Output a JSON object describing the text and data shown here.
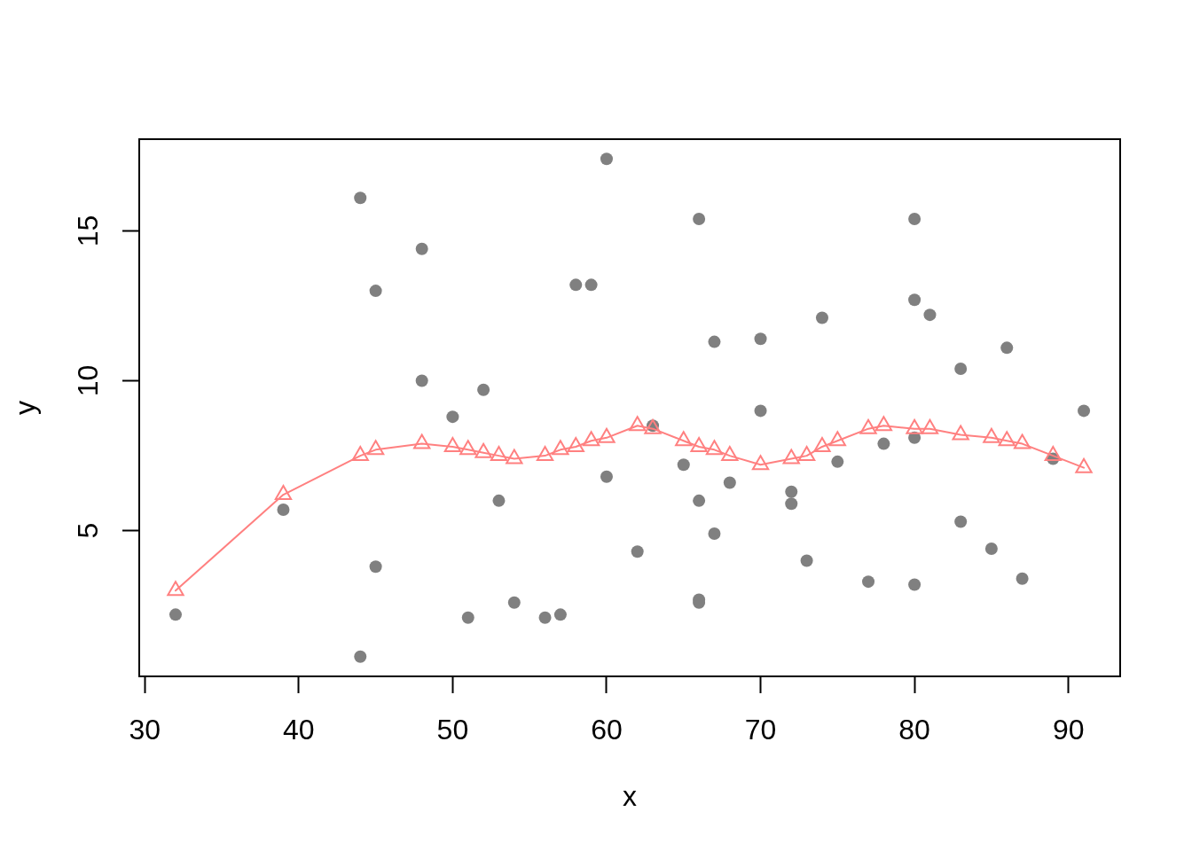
{
  "chart_data": {
    "type": "scatter",
    "xlabel": "x",
    "ylabel": "y",
    "xlim": [
      29.64,
      93.36
    ],
    "ylim": [
      0.14,
      18.06
    ],
    "xticks": [
      30,
      40,
      50,
      60,
      70,
      80,
      90
    ],
    "yticks": [
      5,
      10,
      15
    ],
    "series": [
      {
        "type": "scatter",
        "color": "#808080",
        "marker": "circle",
        "x": [
          32,
          39,
          44,
          44,
          45,
          45,
          48,
          48,
          50,
          51,
          52,
          53,
          54,
          56,
          57,
          58,
          59,
          60,
          60,
          62,
          63,
          65,
          66,
          66,
          66,
          66,
          67,
          67,
          68,
          70,
          70,
          72,
          72,
          73,
          74,
          75,
          77,
          78,
          80,
          80,
          80,
          80,
          81,
          83,
          83,
          85,
          86,
          87,
          89,
          91
        ],
        "values": [
          2.2,
          5.7,
          16.1,
          0.8,
          13.0,
          3.8,
          14.4,
          10.0,
          8.8,
          2.1,
          9.7,
          6.0,
          2.6,
          2.1,
          2.2,
          13.2,
          13.2,
          17.4,
          6.8,
          4.3,
          8.5,
          7.2,
          15.4,
          6.0,
          2.7,
          2.6,
          11.3,
          4.9,
          6.6,
          11.4,
          9.0,
          6.3,
          5.9,
          4.0,
          12.1,
          7.3,
          3.3,
          7.9,
          15.4,
          12.7,
          8.1,
          3.2,
          12.2,
          10.4,
          5.3,
          4.4,
          11.1,
          3.4,
          7.4,
          9.0
        ]
      },
      {
        "type": "line",
        "color": "#ff8080",
        "marker": "triangle",
        "x": [
          32,
          39,
          44,
          45,
          48,
          50,
          51,
          52,
          53,
          54,
          56,
          57,
          58,
          59,
          60,
          62,
          63,
          65,
          66,
          67,
          68,
          70,
          72,
          73,
          74,
          75,
          77,
          78,
          80,
          81,
          83,
          85,
          86,
          87,
          89,
          91
        ],
        "values": [
          3.0,
          6.2,
          7.5,
          7.7,
          7.9,
          7.8,
          7.7,
          7.6,
          7.5,
          7.4,
          7.5,
          7.7,
          7.8,
          8.0,
          8.1,
          8.5,
          8.4,
          8.0,
          7.8,
          7.7,
          7.5,
          7.2,
          7.4,
          7.5,
          7.8,
          8.0,
          8.4,
          8.5,
          8.4,
          8.4,
          8.2,
          8.1,
          8.0,
          7.9,
          7.5,
          7.1
        ]
      }
    ]
  }
}
